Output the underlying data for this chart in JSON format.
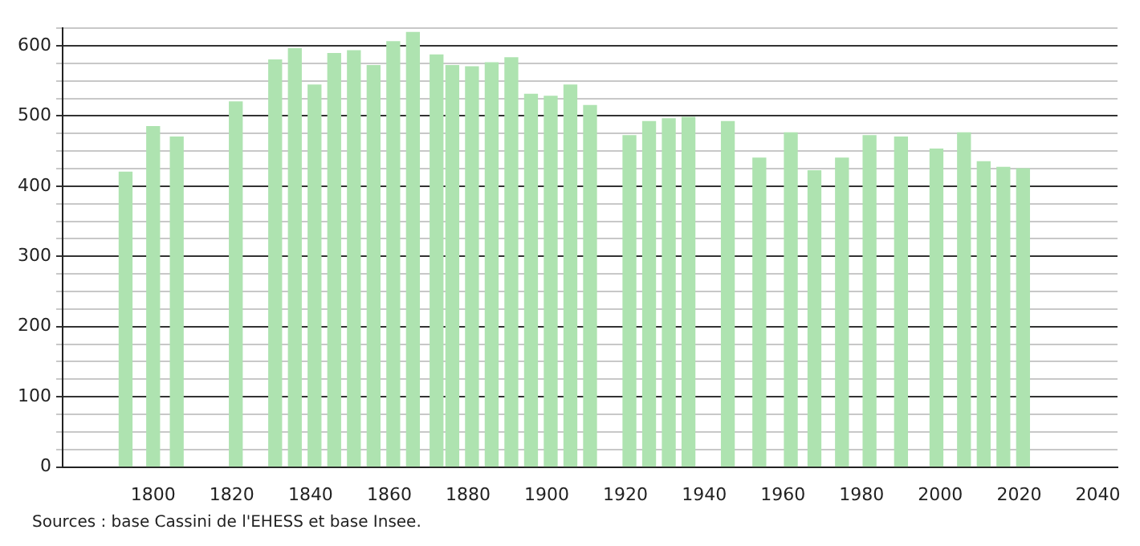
{
  "chart_data": {
    "type": "bar",
    "x": [
      1793,
      1800,
      1806,
      1821,
      1831,
      1836,
      1841,
      1846,
      1851,
      1856,
      1861,
      1866,
      1872,
      1876,
      1881,
      1886,
      1891,
      1896,
      1901,
      1906,
      1911,
      1921,
      1926,
      1931,
      1936,
      1946,
      1954,
      1962,
      1968,
      1975,
      1982,
      1990,
      1999,
      2006,
      2011,
      2016,
      2021
    ],
    "values": [
      420,
      485,
      470,
      520,
      580,
      596,
      544,
      589,
      593,
      572,
      606,
      619,
      587,
      572,
      570,
      576,
      583,
      531,
      528,
      544,
      515,
      472,
      492,
      496,
      498,
      492,
      440,
      476,
      422,
      440,
      472,
      470,
      453,
      476,
      435,
      427,
      425
    ],
    "color": "#aee3b0",
    "xlim": [
      1777,
      2045
    ],
    "xticks": [
      1800,
      1820,
      1840,
      1860,
      1880,
      1900,
      1920,
      1940,
      1960,
      1980,
      2000,
      2020,
      2040
    ],
    "ylim": [
      0,
      625
    ],
    "yticks": [
      0,
      {
        "value": 25,
        "label": null
      },
      {
        "value": 50,
        "label": null
      },
      {
        "value": 75,
        "label": null
      },
      100,
      {
        "value": 125,
        "label": null
      },
      {
        "value": 150,
        "label": null
      },
      {
        "value": 175,
        "label": null
      },
      200,
      {
        "value": 225,
        "label": null
      },
      {
        "value": 250,
        "label": null
      },
      {
        "value": 275,
        "label": null
      },
      300,
      {
        "value": 325,
        "label": null
      },
      {
        "value": 350,
        "label": null
      },
      {
        "value": 375,
        "label": null
      },
      400,
      {
        "value": 425,
        "label": null
      },
      {
        "value": 450,
        "label": null
      },
      {
        "value": 475,
        "label": null
      },
      500,
      {
        "value": 525,
        "label": null
      },
      {
        "value": 550,
        "label": null
      },
      {
        "value": 575,
        "label": null
      },
      600,
      {
        "value": 625,
        "label": null
      }
    ],
    "grid": "y",
    "legend": false,
    "annotations": [
      "Sources : base Cassini de l'EHESS et base Insee."
    ]
  }
}
